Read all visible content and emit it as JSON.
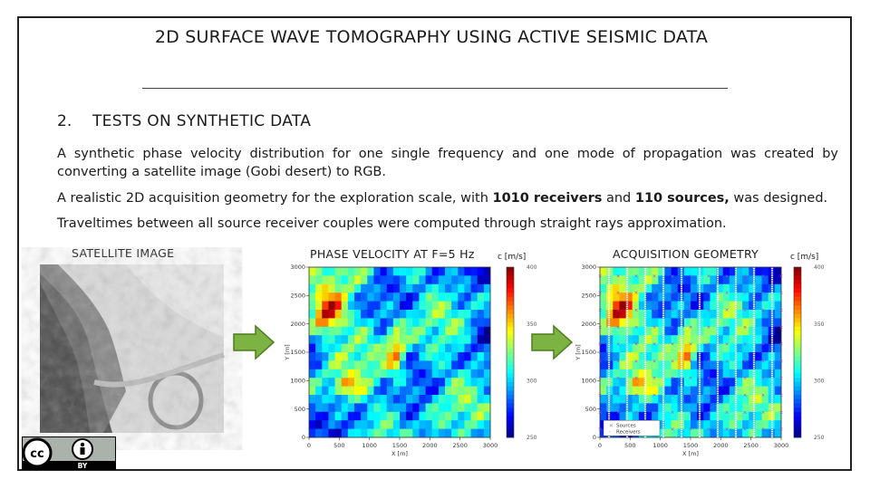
{
  "slide": {
    "title": "2D SURFACE WAVE TOMOGRAPHY USING ACTIVE SEISMIC DATA",
    "section_number": "2.",
    "section_title": "TESTS ON SYNTHETIC DATA",
    "paragraph1": "A synthetic phase velocity distribution for one single frequency and one mode of propagation was created by converting a satellite image (Gobi desert) to RGB.",
    "paragraph2_pre": "A realistic 2D acquisition geometry for the exploration scale, with ",
    "paragraph2_bold1": "1010 receivers",
    "paragraph2_mid": " and ",
    "paragraph2_bold2": "110 sources,",
    "paragraph2_post": " was designed.",
    "paragraph3": "Traveltimes between all source receiver couples were computed through straight rays approximation."
  },
  "figures": {
    "satellite_label": "SATELLITE IMAGE",
    "phase_label": "PHASE VELOCITY AT F=5 Hz",
    "phase_unit": "c [m/s]",
    "acq_label": "ACQUISITION GEOMETRY",
    "acq_unit": "c [m/s]",
    "legend_sources": "Sources",
    "legend_receivers": "Receivers",
    "license_text": "BY"
  },
  "colors": {
    "arrow_fill": "#7cb342",
    "arrow_stroke": "#4e7d1e"
  },
  "chart_data": [
    {
      "type": "heatmap",
      "title": "PHASE VELOCITY AT F=5 Hz",
      "xlabel": "X [m]",
      "ylabel": "Y [m]",
      "xlim": [
        0,
        3000
      ],
      "ylim": [
        0,
        3000
      ],
      "xticks": [
        "0",
        "500",
        "1000",
        "1500",
        "2000",
        "2500",
        "3000"
      ],
      "yticks": [
        "0",
        "500",
        "1000",
        "1500",
        "2000",
        "2500",
        "3000"
      ],
      "colorbar_label": "c [m/s]",
      "colorbar_range": [
        250,
        400
      ],
      "colorbar_ticks": [
        "400",
        "350",
        "300",
        "250"
      ]
    },
    {
      "type": "heatmap",
      "title": "ACQUISITION GEOMETRY",
      "xlabel": "X [m]",
      "ylabel": "Y [m]",
      "xlim": [
        0,
        3000
      ],
      "ylim": [
        0,
        3000
      ],
      "xticks": [
        "0",
        "500",
        "1000",
        "1500",
        "2000",
        "2500",
        "3000"
      ],
      "yticks": [
        "0",
        "500",
        "1000",
        "1500",
        "2000",
        "2500",
        "3000"
      ],
      "colorbar_label": "c [m/s]",
      "colorbar_range": [
        250,
        400
      ],
      "colorbar_ticks": [
        "400",
        "350",
        "300",
        "250"
      ],
      "legend": [
        "Sources",
        "Receivers"
      ],
      "legend_position": "bottom-left",
      "receiver_lines": 10,
      "source_columns": 11
    }
  ]
}
